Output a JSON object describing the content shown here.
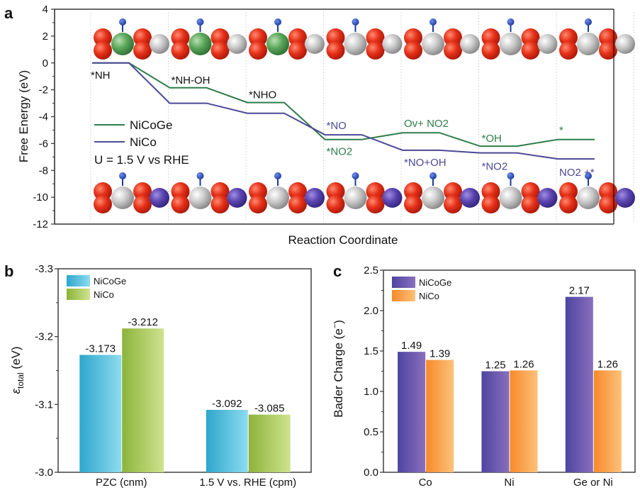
{
  "chart_data": [
    {
      "panel": "a",
      "type": "line",
      "subtype": "free-energy-step-diagram",
      "xlabel": "Reaction Coordinate",
      "ylabel": "Free Energy (eV)",
      "ylim": [
        -12,
        4
      ],
      "yticks": [
        4,
        2,
        0,
        -2,
        -4,
        -6,
        -8,
        -10,
        -12
      ],
      "steps": 7,
      "annotation": "U = 1.5 V vs RHE",
      "legend_position": "center-left",
      "series": [
        {
          "name": "NiCoGe",
          "color": "#2e7d4a",
          "values": [
            0,
            -1.85,
            -2.95,
            -5.7,
            -5.2,
            -6.2,
            -5.7
          ],
          "step_labels": [
            "*NH",
            "*NH-OH",
            "*NHO",
            "*NO2",
            "Ov+ NO2",
            "*OH",
            "*"
          ]
        },
        {
          "name": "NiCo",
          "color": "#4b4a95",
          "values": [
            0,
            -3.0,
            -3.75,
            -5.35,
            -6.5,
            -6.7,
            -7.15
          ],
          "step_labels": [
            "*NH",
            "*NH-OH",
            "*NHO",
            "*NO",
            "*NO+OH",
            "*NO2",
            "NO2 +*"
          ]
        }
      ],
      "structure_insets": {
        "top": "NiCoGe adsorption structures (7)",
        "bottom": "NiCo adsorption structures (7)"
      }
    },
    {
      "panel": "b",
      "type": "bar",
      "categories": [
        "PZC (cnm)",
        "1.5 V vs. RHE (cpm)"
      ],
      "ylabel": "ε_total (eV)",
      "ylim": [
        -3.0,
        -3.3
      ],
      "yticks": [
        "-3.3",
        "-3.2",
        "-3.1",
        "-3.0"
      ],
      "inverted_y": true,
      "legend_position": "top-left",
      "series": [
        {
          "name": "NiCoGe",
          "color": "#3bb3d6",
          "values": [
            -3.173,
            -3.092
          ],
          "labels": [
            "-3.173",
            "-3.092"
          ]
        },
        {
          "name": "NiCo",
          "color": "#98bf45",
          "values": [
            -3.212,
            -3.085
          ],
          "labels": [
            "-3.212",
            "-3.085"
          ]
        }
      ]
    },
    {
      "panel": "c",
      "type": "bar",
      "categories": [
        "Co",
        "Ni",
        "Ge or Ni"
      ],
      "ylabel": "Bader Charge (e⁻)",
      "ylim": [
        0,
        2.5
      ],
      "yticks": [
        "0.0",
        "0.5",
        "1.0",
        "1.5",
        "2.0",
        "2.5"
      ],
      "legend_position": "top-left",
      "series": [
        {
          "name": "NiCoGe",
          "color": "#5b4fa6",
          "values": [
            1.49,
            1.25,
            2.17
          ],
          "labels": [
            "1.49",
            "1.25",
            "2.17"
          ]
        },
        {
          "name": "NiCo",
          "color": "#f8973a",
          "values": [
            1.39,
            1.26,
            1.26
          ],
          "labels": [
            "1.39",
            "1.26",
            "1.26"
          ]
        }
      ]
    }
  ],
  "panels": {
    "a": "a",
    "b": "b",
    "c": "c"
  },
  "text": {
    "a_xlabel": "Reaction Coordinate",
    "a_ylabel": "Free Energy (eV)",
    "a_legend_1": "NiCoGe",
    "a_legend_2": "NiCo",
    "a_annotation": "U = 1.5 V vs RHE",
    "b_ylabel_main": "ε",
    "b_ylabel_sub": "total",
    "b_ylabel_unit": " (eV)",
    "c_ylabel": "Bader Charge (e",
    "c_ylabel_sup": "−",
    "c_ylabel_end": ")",
    "legend_nicoge": "NiCoGe",
    "legend_nico": "NiCo"
  }
}
